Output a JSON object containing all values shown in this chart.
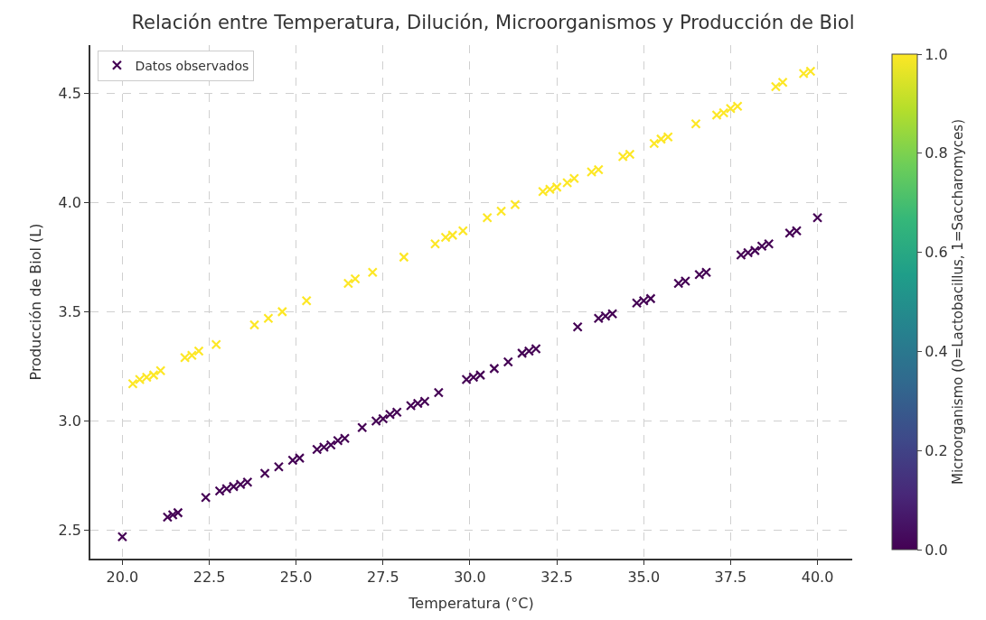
{
  "chart_data": {
    "type": "scatter",
    "title": "Relación entre Temperatura, Dilución, Microorganismos y Producción de Biol",
    "xlabel": "Temperatura (°C)",
    "ylabel": "Producción de Biol (L)",
    "clabel": "Microorganismo (0=Lactobacillus, 1=Saccharomyces)",
    "series": [
      {
        "name": "Datos observados",
        "x": [
          20.0,
          21.3,
          21.45,
          21.6,
          22.4,
          22.8,
          23.0,
          23.2,
          23.4,
          23.6,
          24.1,
          24.5,
          24.9,
          25.1,
          25.6,
          25.8,
          26.0,
          26.2,
          26.4,
          26.9,
          27.3,
          27.5,
          27.7,
          27.9,
          28.3,
          28.5,
          28.7,
          29.1,
          29.9,
          30.1,
          30.3,
          30.7,
          31.1,
          31.5,
          31.7,
          31.9,
          33.1,
          33.7,
          33.9,
          34.1,
          34.8,
          35.0,
          35.2,
          36.0,
          36.2,
          36.6,
          36.8,
          37.8,
          38.0,
          38.2,
          38.4,
          38.6,
          39.2,
          39.4,
          40.0,
          20.3,
          20.5,
          20.7,
          20.9,
          21.1,
          21.8,
          22.0,
          22.2,
          22.7,
          23.8,
          24.2,
          24.6,
          25.3,
          26.5,
          26.7,
          27.2,
          28.1,
          29.0,
          29.3,
          29.5,
          29.8,
          30.5,
          30.9,
          31.3,
          32.1,
          32.3,
          32.5,
          32.8,
          33.0,
          33.5,
          33.7,
          34.4,
          34.6,
          35.3,
          35.5,
          35.7,
          36.5,
          37.1,
          37.3,
          37.5,
          37.7,
          38.8,
          39.0,
          39.6,
          39.8
        ],
        "values": [
          2.47,
          2.56,
          2.57,
          2.58,
          2.65,
          2.68,
          2.69,
          2.7,
          2.71,
          2.72,
          2.76,
          2.79,
          2.82,
          2.83,
          2.87,
          2.88,
          2.89,
          2.91,
          2.92,
          2.97,
          3.0,
          3.01,
          3.03,
          3.04,
          3.07,
          3.08,
          3.09,
          3.13,
          3.19,
          3.2,
          3.21,
          3.24,
          3.27,
          3.31,
          3.32,
          3.33,
          3.43,
          3.47,
          3.48,
          3.49,
          3.54,
          3.55,
          3.56,
          3.63,
          3.64,
          3.67,
          3.68,
          3.76,
          3.77,
          3.78,
          3.8,
          3.81,
          3.86,
          3.87,
          3.93,
          3.17,
          3.19,
          3.2,
          3.21,
          3.23,
          3.29,
          3.3,
          3.32,
          3.35,
          3.44,
          3.47,
          3.5,
          3.55,
          3.63,
          3.65,
          3.68,
          3.75,
          3.81,
          3.84,
          3.85,
          3.87,
          3.93,
          3.96,
          3.99,
          4.05,
          4.06,
          4.07,
          4.09,
          4.11,
          4.14,
          4.15,
          4.21,
          4.22,
          4.27,
          4.29,
          4.3,
          4.36,
          4.4,
          4.41,
          4.43,
          4.44,
          4.53,
          4.55,
          4.59,
          4.6
        ],
        "cvalues": [
          0,
          0,
          0,
          0,
          0,
          0,
          0,
          0,
          0,
          0,
          0,
          0,
          0,
          0,
          0,
          0,
          0,
          0,
          0,
          0,
          0,
          0,
          0,
          0,
          0,
          0,
          0,
          0,
          0,
          0,
          0,
          0,
          0,
          0,
          0,
          0,
          0,
          0,
          0,
          0,
          0,
          0,
          0,
          0,
          0,
          0,
          0,
          0,
          0,
          0,
          0,
          0,
          0,
          0,
          0,
          1,
          1,
          1,
          1,
          1,
          1,
          1,
          1,
          1,
          1,
          1,
          1,
          1,
          1,
          1,
          1,
          1,
          1,
          1,
          1,
          1,
          1,
          1,
          1,
          1,
          1,
          1,
          1,
          1,
          1,
          1,
          1,
          1,
          1,
          1,
          1,
          1,
          1,
          1,
          1,
          1,
          1,
          1,
          1,
          1
        ]
      }
    ],
    "xlim": [
      19.08,
      41.0
    ],
    "ylim": [
      2.37,
      4.72
    ],
    "xticks": [
      {
        "value": 20,
        "label": "20.0"
      },
      {
        "value": 22.5,
        "label": "22.5"
      },
      {
        "value": 25,
        "label": "25.0"
      },
      {
        "value": 27.5,
        "label": "27.5"
      },
      {
        "value": 30,
        "label": "30.0"
      },
      {
        "value": 32.5,
        "label": "32.5"
      },
      {
        "value": 35,
        "label": "35.0"
      },
      {
        "value": 37.5,
        "label": "37.5"
      },
      {
        "value": 40,
        "label": "40.0"
      }
    ],
    "yticks": [
      2.5,
      {
        "value": 3,
        "label": "3.0"
      },
      3.5,
      {
        "value": 4,
        "label": "4.0"
      },
      4.5
    ],
    "clim": [
      0,
      1
    ],
    "cticks": [
      {
        "value": 0,
        "label": "0.0"
      },
      {
        "value": 0.2,
        "label": "0.2"
      },
      {
        "value": 0.4,
        "label": "0.4"
      },
      {
        "value": 0.6,
        "label": "0.6"
      },
      {
        "value": 0.8,
        "label": "0.8"
      },
      {
        "value": 1,
        "label": "1.0"
      }
    ],
    "marker": "cross",
    "grid": true,
    "legend": "top left"
  }
}
